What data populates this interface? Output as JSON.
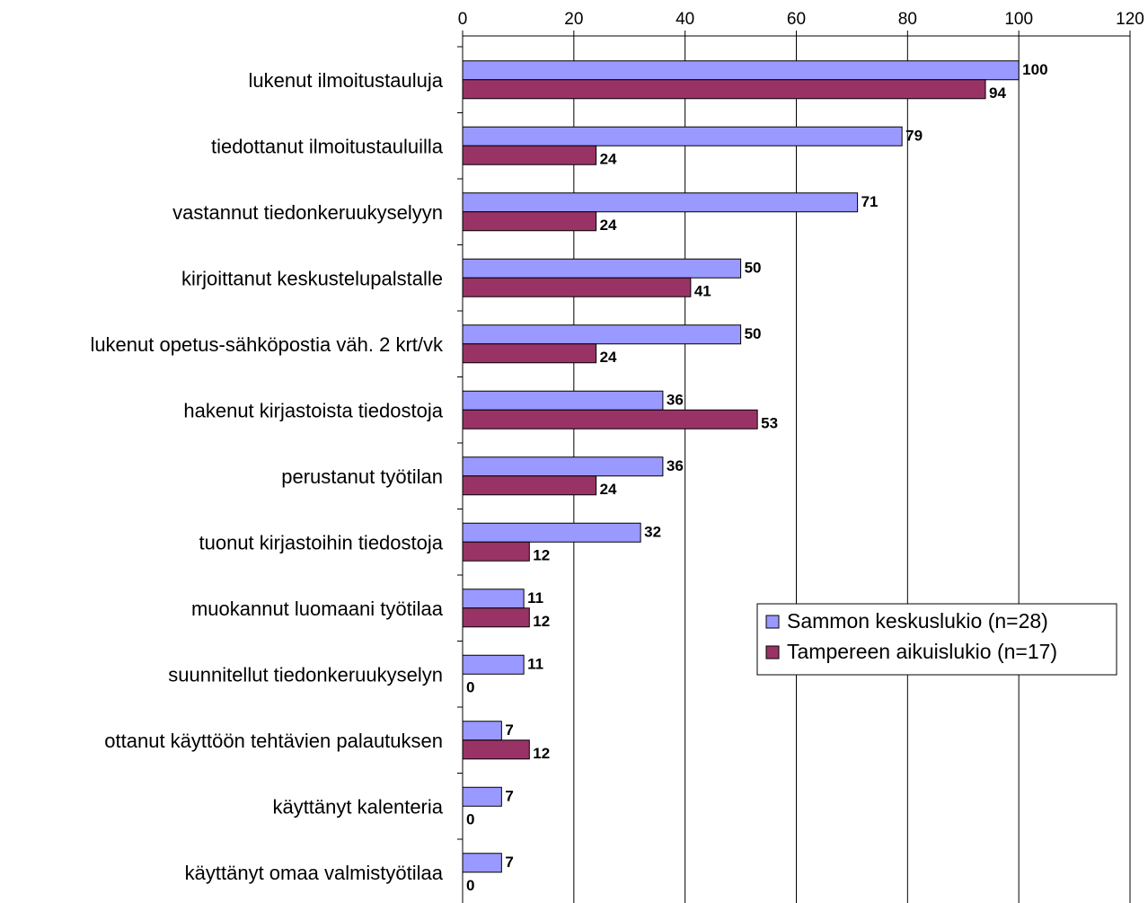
{
  "chart_data": {
    "type": "bar",
    "orientation": "horizontal",
    "title": "",
    "xlabel": "",
    "ylabel": "",
    "xlim": [
      0,
      120
    ],
    "xticks": [
      "0",
      "20",
      "40",
      "60",
      "80",
      "100",
      "120"
    ],
    "grid": "vertical",
    "legend_position": "lower-right",
    "categories": [
      "lukenut ilmoitustauluja",
      "tiedottanut ilmoitustauluilla",
      "vastannut tiedonkeruukyselyyn",
      "kirjoittanut keskustelupalstalle",
      "lukenut opetus-sähköpostia väh. 2 krt/vk",
      "hakenut kirjastoista tiedostoja",
      "perustanut työtilan",
      "tuonut kirjastoihin tiedostoja",
      "muokannut luomaani työtilaa",
      "suunnitellut tiedonkeruukyselyn",
      "ottanut käyttöön tehtävien palautuksen",
      "käyttänyt kalenteria",
      "käyttänyt omaa valmistyötilaa"
    ],
    "series": [
      {
        "name": "Sammon keskuslukio (n=28)",
        "color": "#9999ff",
        "values": [
          100,
          79,
          71,
          50,
          50,
          36,
          36,
          32,
          11,
          11,
          7,
          7,
          7
        ],
        "labels": [
          "100",
          "79",
          "71",
          "50",
          "50",
          "36",
          "36",
          "32",
          "11",
          "11",
          "7",
          "7",
          "7"
        ]
      },
      {
        "name": "Tampereen aikuislukio (n=17)",
        "color": "#993366",
        "values": [
          94,
          24,
          24,
          41,
          24,
          53,
          24,
          12,
          12,
          0,
          12,
          0,
          0
        ],
        "labels": [
          "94",
          "24",
          "24",
          "41",
          "24",
          "53",
          "24",
          "12",
          "12",
          "0",
          "12",
          "0",
          "0"
        ]
      }
    ]
  }
}
